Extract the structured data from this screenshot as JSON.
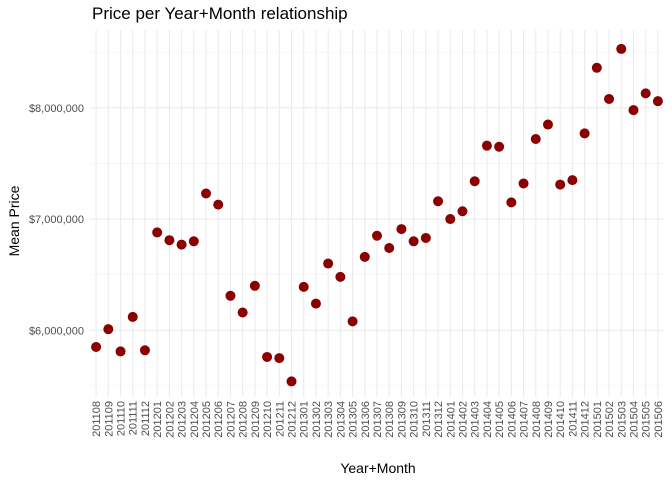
{
  "chart_data": {
    "type": "scatter",
    "title": "Price per Year+Month relationship",
    "xlabel": "Year+Month",
    "ylabel": "Mean Price",
    "ylim": [
      5400000,
      8700000
    ],
    "yticks": [
      6000000,
      7000000,
      8000000
    ],
    "ytick_labels": [
      "$6,000,000",
      "$7,000,000",
      "$8,000,000"
    ],
    "grid": true,
    "point_color": "#8B0000",
    "categories": [
      "201108",
      "201109",
      "201110",
      "201111",
      "201112",
      "201201",
      "201202",
      "201203",
      "201204",
      "201205",
      "201206",
      "201207",
      "201208",
      "201209",
      "201210",
      "201211",
      "201212",
      "201301",
      "201302",
      "201303",
      "201304",
      "201305",
      "201306",
      "201307",
      "201308",
      "201309",
      "201310",
      "201311",
      "201312",
      "201401",
      "201402",
      "201403",
      "201404",
      "201405",
      "201406",
      "201407",
      "201408",
      "201409",
      "201410",
      "201411",
      "201412",
      "201501",
      "201502",
      "201503",
      "201504",
      "201505",
      "201506"
    ],
    "values": [
      5850000,
      6010000,
      5810000,
      6120000,
      5820000,
      6880000,
      6810000,
      6770000,
      6800000,
      7230000,
      7130000,
      6310000,
      6160000,
      6400000,
      5760000,
      5750000,
      5540000,
      6390000,
      6240000,
      6600000,
      6480000,
      6080000,
      6660000,
      6850000,
      6740000,
      6910000,
      6800000,
      6830000,
      7160000,
      7000000,
      7070000,
      7340000,
      7660000,
      7650000,
      7150000,
      7320000,
      7720000,
      7850000,
      7310000,
      7350000,
      7770000,
      8360000,
      8080000,
      8530000,
      7980000,
      8130000,
      8060000
    ]
  }
}
